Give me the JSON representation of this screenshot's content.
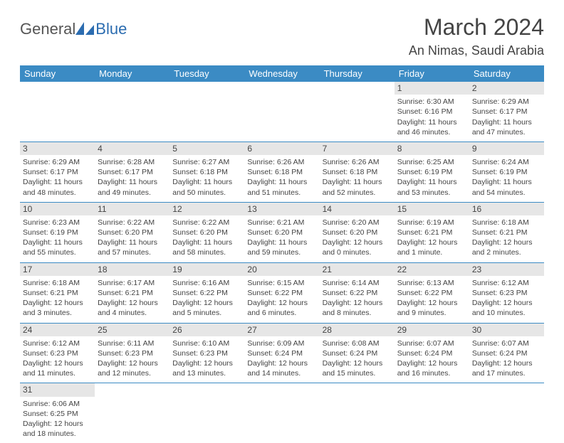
{
  "logo": {
    "general": "General",
    "blue": "Blue"
  },
  "title": "March 2024",
  "location": "An Nimas, Saudi Arabia",
  "colors": {
    "header_bg": "#3b8bc4",
    "header_text": "#ffffff",
    "daynum_bg": "#e6e6e6",
    "rule": "#3b8bc4",
    "body_text": "#444444",
    "logo_gray": "#555555",
    "logo_blue": "#2b6cb0"
  },
  "typography": {
    "title_fontsize": 32,
    "location_fontsize": 18,
    "dayhead_fontsize": 13,
    "daynum_fontsize": 12,
    "cell_fontsize": 10.5
  },
  "dayheads": [
    "Sunday",
    "Monday",
    "Tuesday",
    "Wednesday",
    "Thursday",
    "Friday",
    "Saturday"
  ],
  "weeks": [
    [
      {
        "n": "",
        "sr": "",
        "ss": "",
        "dl1": "",
        "dl2": ""
      },
      {
        "n": "",
        "sr": "",
        "ss": "",
        "dl1": "",
        "dl2": ""
      },
      {
        "n": "",
        "sr": "",
        "ss": "",
        "dl1": "",
        "dl2": ""
      },
      {
        "n": "",
        "sr": "",
        "ss": "",
        "dl1": "",
        "dl2": ""
      },
      {
        "n": "",
        "sr": "",
        "ss": "",
        "dl1": "",
        "dl2": ""
      },
      {
        "n": "1",
        "sr": "Sunrise: 6:30 AM",
        "ss": "Sunset: 6:16 PM",
        "dl1": "Daylight: 11 hours",
        "dl2": "and 46 minutes."
      },
      {
        "n": "2",
        "sr": "Sunrise: 6:29 AM",
        "ss": "Sunset: 6:17 PM",
        "dl1": "Daylight: 11 hours",
        "dl2": "and 47 minutes."
      }
    ],
    [
      {
        "n": "3",
        "sr": "Sunrise: 6:29 AM",
        "ss": "Sunset: 6:17 PM",
        "dl1": "Daylight: 11 hours",
        "dl2": "and 48 minutes."
      },
      {
        "n": "4",
        "sr": "Sunrise: 6:28 AM",
        "ss": "Sunset: 6:17 PM",
        "dl1": "Daylight: 11 hours",
        "dl2": "and 49 minutes."
      },
      {
        "n": "5",
        "sr": "Sunrise: 6:27 AM",
        "ss": "Sunset: 6:18 PM",
        "dl1": "Daylight: 11 hours",
        "dl2": "and 50 minutes."
      },
      {
        "n": "6",
        "sr": "Sunrise: 6:26 AM",
        "ss": "Sunset: 6:18 PM",
        "dl1": "Daylight: 11 hours",
        "dl2": "and 51 minutes."
      },
      {
        "n": "7",
        "sr": "Sunrise: 6:26 AM",
        "ss": "Sunset: 6:18 PM",
        "dl1": "Daylight: 11 hours",
        "dl2": "and 52 minutes."
      },
      {
        "n": "8",
        "sr": "Sunrise: 6:25 AM",
        "ss": "Sunset: 6:19 PM",
        "dl1": "Daylight: 11 hours",
        "dl2": "and 53 minutes."
      },
      {
        "n": "9",
        "sr": "Sunrise: 6:24 AM",
        "ss": "Sunset: 6:19 PM",
        "dl1": "Daylight: 11 hours",
        "dl2": "and 54 minutes."
      }
    ],
    [
      {
        "n": "10",
        "sr": "Sunrise: 6:23 AM",
        "ss": "Sunset: 6:19 PM",
        "dl1": "Daylight: 11 hours",
        "dl2": "and 55 minutes."
      },
      {
        "n": "11",
        "sr": "Sunrise: 6:22 AM",
        "ss": "Sunset: 6:20 PM",
        "dl1": "Daylight: 11 hours",
        "dl2": "and 57 minutes."
      },
      {
        "n": "12",
        "sr": "Sunrise: 6:22 AM",
        "ss": "Sunset: 6:20 PM",
        "dl1": "Daylight: 11 hours",
        "dl2": "and 58 minutes."
      },
      {
        "n": "13",
        "sr": "Sunrise: 6:21 AM",
        "ss": "Sunset: 6:20 PM",
        "dl1": "Daylight: 11 hours",
        "dl2": "and 59 minutes."
      },
      {
        "n": "14",
        "sr": "Sunrise: 6:20 AM",
        "ss": "Sunset: 6:20 PM",
        "dl1": "Daylight: 12 hours",
        "dl2": "and 0 minutes."
      },
      {
        "n": "15",
        "sr": "Sunrise: 6:19 AM",
        "ss": "Sunset: 6:21 PM",
        "dl1": "Daylight: 12 hours",
        "dl2": "and 1 minute."
      },
      {
        "n": "16",
        "sr": "Sunrise: 6:18 AM",
        "ss": "Sunset: 6:21 PM",
        "dl1": "Daylight: 12 hours",
        "dl2": "and 2 minutes."
      }
    ],
    [
      {
        "n": "17",
        "sr": "Sunrise: 6:18 AM",
        "ss": "Sunset: 6:21 PM",
        "dl1": "Daylight: 12 hours",
        "dl2": "and 3 minutes."
      },
      {
        "n": "18",
        "sr": "Sunrise: 6:17 AM",
        "ss": "Sunset: 6:21 PM",
        "dl1": "Daylight: 12 hours",
        "dl2": "and 4 minutes."
      },
      {
        "n": "19",
        "sr": "Sunrise: 6:16 AM",
        "ss": "Sunset: 6:22 PM",
        "dl1": "Daylight: 12 hours",
        "dl2": "and 5 minutes."
      },
      {
        "n": "20",
        "sr": "Sunrise: 6:15 AM",
        "ss": "Sunset: 6:22 PM",
        "dl1": "Daylight: 12 hours",
        "dl2": "and 6 minutes."
      },
      {
        "n": "21",
        "sr": "Sunrise: 6:14 AM",
        "ss": "Sunset: 6:22 PM",
        "dl1": "Daylight: 12 hours",
        "dl2": "and 8 minutes."
      },
      {
        "n": "22",
        "sr": "Sunrise: 6:13 AM",
        "ss": "Sunset: 6:22 PM",
        "dl1": "Daylight: 12 hours",
        "dl2": "and 9 minutes."
      },
      {
        "n": "23",
        "sr": "Sunrise: 6:12 AM",
        "ss": "Sunset: 6:23 PM",
        "dl1": "Daylight: 12 hours",
        "dl2": "and 10 minutes."
      }
    ],
    [
      {
        "n": "24",
        "sr": "Sunrise: 6:12 AM",
        "ss": "Sunset: 6:23 PM",
        "dl1": "Daylight: 12 hours",
        "dl2": "and 11 minutes."
      },
      {
        "n": "25",
        "sr": "Sunrise: 6:11 AM",
        "ss": "Sunset: 6:23 PM",
        "dl1": "Daylight: 12 hours",
        "dl2": "and 12 minutes."
      },
      {
        "n": "26",
        "sr": "Sunrise: 6:10 AM",
        "ss": "Sunset: 6:23 PM",
        "dl1": "Daylight: 12 hours",
        "dl2": "and 13 minutes."
      },
      {
        "n": "27",
        "sr": "Sunrise: 6:09 AM",
        "ss": "Sunset: 6:24 PM",
        "dl1": "Daylight: 12 hours",
        "dl2": "and 14 minutes."
      },
      {
        "n": "28",
        "sr": "Sunrise: 6:08 AM",
        "ss": "Sunset: 6:24 PM",
        "dl1": "Daylight: 12 hours",
        "dl2": "and 15 minutes."
      },
      {
        "n": "29",
        "sr": "Sunrise: 6:07 AM",
        "ss": "Sunset: 6:24 PM",
        "dl1": "Daylight: 12 hours",
        "dl2": "and 16 minutes."
      },
      {
        "n": "30",
        "sr": "Sunrise: 6:07 AM",
        "ss": "Sunset: 6:24 PM",
        "dl1": "Daylight: 12 hours",
        "dl2": "and 17 minutes."
      }
    ],
    [
      {
        "n": "31",
        "sr": "Sunrise: 6:06 AM",
        "ss": "Sunset: 6:25 PM",
        "dl1": "Daylight: 12 hours",
        "dl2": "and 18 minutes."
      },
      {
        "n": "",
        "sr": "",
        "ss": "",
        "dl1": "",
        "dl2": ""
      },
      {
        "n": "",
        "sr": "",
        "ss": "",
        "dl1": "",
        "dl2": ""
      },
      {
        "n": "",
        "sr": "",
        "ss": "",
        "dl1": "",
        "dl2": ""
      },
      {
        "n": "",
        "sr": "",
        "ss": "",
        "dl1": "",
        "dl2": ""
      },
      {
        "n": "",
        "sr": "",
        "ss": "",
        "dl1": "",
        "dl2": ""
      },
      {
        "n": "",
        "sr": "",
        "ss": "",
        "dl1": "",
        "dl2": ""
      }
    ]
  ]
}
